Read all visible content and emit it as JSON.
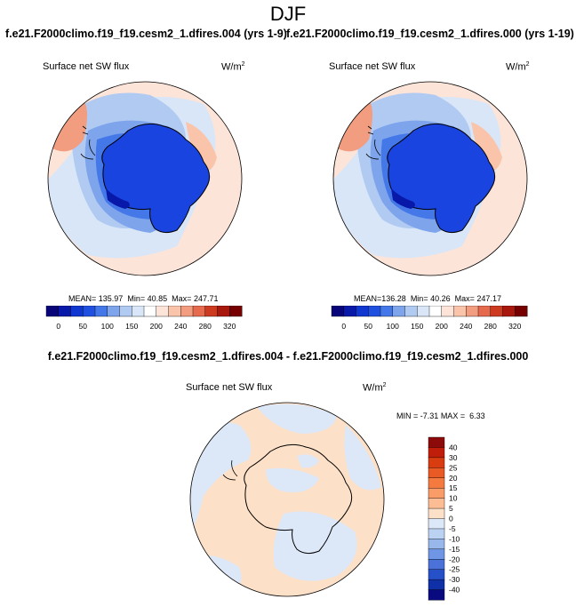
{
  "title": "DJF",
  "panels": [
    {
      "case_title": "f.e21.F2000climo.f19_f19.cesm2_1.dfires.004 (yrs 1-9)",
      "variable": "Surface net SW flux",
      "units": "W/m",
      "units_exp": "2",
      "stats": {
        "mean_label": "MEAN=",
        "mean": "135.97",
        "min_label": "Min=",
        "min": "40.85",
        "max_label": "Max=",
        "max": "247.71"
      }
    },
    {
      "case_title": "f.e21.F2000climo.f19_f19.cesm2_1.dfires.000 (yrs 1-19)",
      "variable": "Surface net SW flux",
      "units": "W/m",
      "units_exp": "2",
      "stats": {
        "mean_label": "MEAN=",
        "mean": "136.28",
        "min_label": "Min=",
        "min": "40.26",
        "max_label": "Max=",
        "max": "247.17"
      }
    }
  ],
  "diff_panel": {
    "title": "f.e21.F2000climo.f19_f19.cesm2_1.dfires.004 - f.e21.F2000climo.f19_f19.cesm2_1.dfires.000",
    "variable": "Surface net SW flux",
    "units": "W/m",
    "units_exp": "2",
    "stats": {
      "min_label": "MIN =",
      "min": "-7.31",
      "max_label": "MAX =",
      "max": "6.33"
    }
  },
  "chart_data": [
    {
      "type": "heatmap",
      "projection": "south-polar-stereographic",
      "title": "f.e21.F2000climo.f19_f19.cesm2_1.dfires.004 (yrs 1-9)",
      "variable": "Surface net SW flux",
      "units": "W/m2",
      "colorbar": {
        "orientation": "horizontal",
        "tick_labels": [
          "0",
          "50",
          "100",
          "150",
          "200",
          "240",
          "280",
          "320"
        ],
        "colors": [
          "#08047a",
          "#0818a8",
          "#1038d0",
          "#2050e0",
          "#4478e8",
          "#7ea4ec",
          "#b0caf2",
          "#d8e6f8",
          "#ffffff",
          "#fde4d8",
          "#f9c4aa",
          "#f29c80",
          "#e66a4e",
          "#cc3a20",
          "#a8180c",
          "#760000"
        ]
      },
      "stats": {
        "mean": 135.97,
        "min": 40.85,
        "max": 247.71
      }
    },
    {
      "type": "heatmap",
      "projection": "south-polar-stereographic",
      "title": "f.e21.F2000climo.f19_f19.cesm2_1.dfires.000 (yrs 1-19)",
      "variable": "Surface net SW flux",
      "units": "W/m2",
      "colorbar": {
        "orientation": "horizontal",
        "tick_labels": [
          "0",
          "50",
          "100",
          "150",
          "200",
          "240",
          "280",
          "320"
        ],
        "colors": [
          "#08047a",
          "#0818a8",
          "#1038d0",
          "#2050e0",
          "#4478e8",
          "#7ea4ec",
          "#b0caf2",
          "#d8e6f8",
          "#ffffff",
          "#fde4d8",
          "#f9c4aa",
          "#f29c80",
          "#e66a4e",
          "#cc3a20",
          "#a8180c",
          "#760000"
        ]
      },
      "stats": {
        "mean": 136.28,
        "min": 40.26,
        "max": 247.17
      }
    },
    {
      "type": "heatmap",
      "projection": "south-polar-stereographic",
      "title": "f.e21.F2000climo.f19_f19.cesm2_1.dfires.004 - f.e21.F2000climo.f19_f19.cesm2_1.dfires.000",
      "variable": "Surface net SW flux",
      "units": "W/m2",
      "colorbar": {
        "orientation": "vertical",
        "tick_labels": [
          "40",
          "30",
          "25",
          "20",
          "15",
          "10",
          "5",
          "0",
          "-5",
          "-10",
          "-15",
          "-20",
          "-25",
          "-30",
          "-40"
        ],
        "colors": [
          "#8c0a0a",
          "#c01e0a",
          "#d83c10",
          "#ea5a24",
          "#f47a40",
          "#f99c68",
          "#fcbc94",
          "#fde0c8",
          "#dce8f8",
          "#bcd2f2",
          "#98b8ec",
          "#6e96e4",
          "#4a72d8",
          "#2650c8",
          "#1030a8",
          "#0a0a80"
        ]
      },
      "stats": {
        "min": -7.31,
        "max": 6.33
      }
    }
  ]
}
